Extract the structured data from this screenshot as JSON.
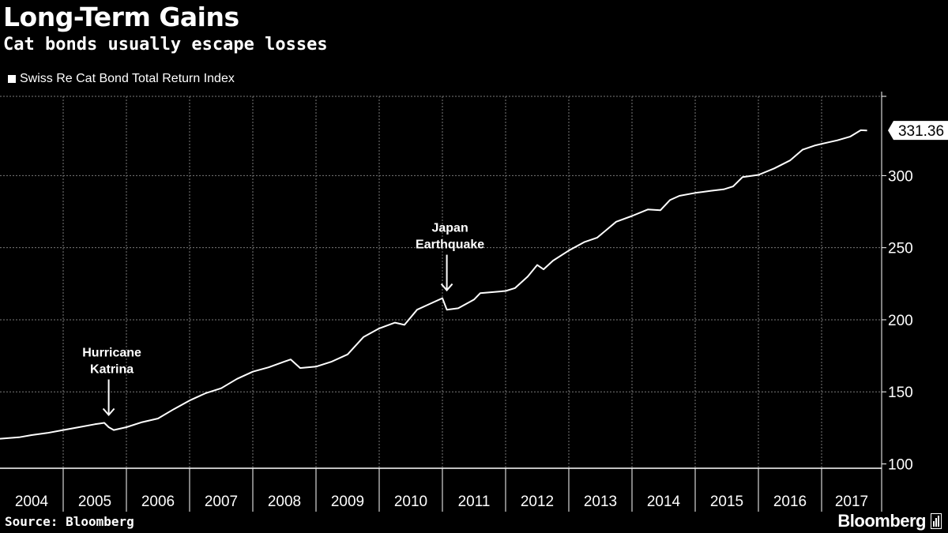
{
  "header": {
    "title": "Long-Term Gains",
    "subtitle": "Cat bonds usually escape losses",
    "legend_label": "Swiss Re Cat Bond Total Return Index"
  },
  "footer": {
    "source": "Source: Bloomberg",
    "brand": "Bloomberg"
  },
  "colors": {
    "background": "#000000",
    "line": "#ffffff",
    "grid": "#7a7a7a"
  },
  "chart_data": {
    "type": "line",
    "title": "Long-Term Gains",
    "subtitle": "Cat bonds usually escape losses",
    "series": [
      {
        "name": "Swiss Re Cat Bond Total Return Index",
        "points": [
          [
            2004.0,
            117.5
          ],
          [
            2004.3,
            118.5
          ],
          [
            2004.5,
            120
          ],
          [
            2004.75,
            121.5
          ],
          [
            2005.0,
            123.5
          ],
          [
            2005.25,
            125.5
          ],
          [
            2005.5,
            127.5
          ],
          [
            2005.65,
            128.5
          ],
          [
            2005.72,
            125.5
          ],
          [
            2005.8,
            123.5
          ],
          [
            2006.0,
            125.5
          ],
          [
            2006.25,
            129
          ],
          [
            2006.5,
            131.5
          ],
          [
            2006.75,
            138
          ],
          [
            2007.0,
            144
          ],
          [
            2007.25,
            149
          ],
          [
            2007.5,
            152.5
          ],
          [
            2007.75,
            159
          ],
          [
            2008.0,
            164
          ],
          [
            2008.25,
            167
          ],
          [
            2008.5,
            171
          ],
          [
            2008.6,
            172.5
          ],
          [
            2008.75,
            166.5
          ],
          [
            2009.0,
            167.5
          ],
          [
            2009.25,
            171
          ],
          [
            2009.5,
            176
          ],
          [
            2009.75,
            188
          ],
          [
            2010.0,
            194
          ],
          [
            2010.25,
            198
          ],
          [
            2010.4,
            196.5
          ],
          [
            2010.6,
            207
          ],
          [
            2010.8,
            211
          ],
          [
            2011.0,
            215
          ],
          [
            2011.07,
            207
          ],
          [
            2011.25,
            208
          ],
          [
            2011.5,
            214
          ],
          [
            2011.6,
            218.5
          ],
          [
            2012.0,
            220
          ],
          [
            2012.15,
            222
          ],
          [
            2012.35,
            230
          ],
          [
            2012.5,
            238
          ],
          [
            2012.6,
            235
          ],
          [
            2012.75,
            241
          ],
          [
            2013.0,
            248
          ],
          [
            2013.25,
            254
          ],
          [
            2013.45,
            257
          ],
          [
            2013.75,
            268
          ],
          [
            2014.0,
            272
          ],
          [
            2014.25,
            276.5
          ],
          [
            2014.45,
            276
          ],
          [
            2014.6,
            283
          ],
          [
            2014.75,
            286
          ],
          [
            2015.0,
            288
          ],
          [
            2015.25,
            289.5
          ],
          [
            2015.45,
            290.5
          ],
          [
            2015.6,
            292.5
          ],
          [
            2015.75,
            299
          ],
          [
            2016.0,
            300.5
          ],
          [
            2016.25,
            305
          ],
          [
            2016.5,
            310.5
          ],
          [
            2016.7,
            318
          ],
          [
            2016.9,
            321
          ],
          [
            2017.0,
            322
          ],
          [
            2017.25,
            324.5
          ],
          [
            2017.45,
            327
          ],
          [
            2017.62,
            331.5
          ],
          [
            2017.72,
            331.36
          ]
        ]
      }
    ],
    "last_value": "331.36",
    "x_tick_labels": [
      "2004",
      "2005",
      "2006",
      "2007",
      "2008",
      "2009",
      "2010",
      "2011",
      "2012",
      "2013",
      "2014",
      "2015",
      "2016",
      "2017"
    ],
    "y_ticks": [
      100,
      150,
      200,
      250,
      300
    ],
    "y_tick_labels": [
      "100",
      "150",
      "200",
      "250",
      "300"
    ],
    "xlim": [
      2004.0,
      2017.95
    ],
    "ylim": [
      97,
      355
    ],
    "annotations": [
      {
        "lines": [
          "Hurricane",
          "Katrina"
        ],
        "x": 2005.72,
        "y": 128.5
      },
      {
        "lines": [
          "Japan",
          "Earthquake"
        ],
        "x": 2011.07,
        "y": 215
      }
    ],
    "grid": true,
    "legend_position": "top-left",
    "y_axis_side": "right"
  }
}
